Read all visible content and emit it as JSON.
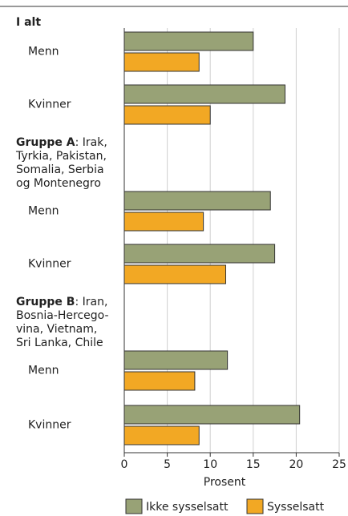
{
  "chart_data": {
    "type": "bar",
    "orientation": "horizontal",
    "groups": [
      {
        "name": "I alt",
        "lines": []
      },
      {
        "name": "Gruppe A",
        "lines": [
          ": Irak,",
          "Tyrkia, Pakistan,",
          "Somalia, Serbia",
          "og Montenegro"
        ]
      },
      {
        "name": "Gruppe B",
        "lines": [
          ": Iran,",
          "Bosnia-Hercego-",
          "vina, Vietnam,",
          "Sri Lanka, Chile"
        ]
      }
    ],
    "categories": [
      "Menn",
      "Kvinner",
      "Menn",
      "Kvinner",
      "Menn",
      "Kvinner"
    ],
    "series": [
      {
        "name": "Ikke sysselsatt",
        "color": "#98a276",
        "values": [
          15,
          18.7,
          17,
          17.5,
          12,
          20.4
        ]
      },
      {
        "name": "Sysselsatt",
        "color": "#f2a824",
        "values": [
          8.7,
          10,
          9.2,
          11.8,
          8.2,
          8.7
        ]
      }
    ],
    "xlabel": "Prosent",
    "xlim": [
      0,
      25
    ],
    "xticks": [
      0,
      5,
      10,
      15,
      20,
      25
    ],
    "grid": true,
    "legend": "bottom"
  }
}
